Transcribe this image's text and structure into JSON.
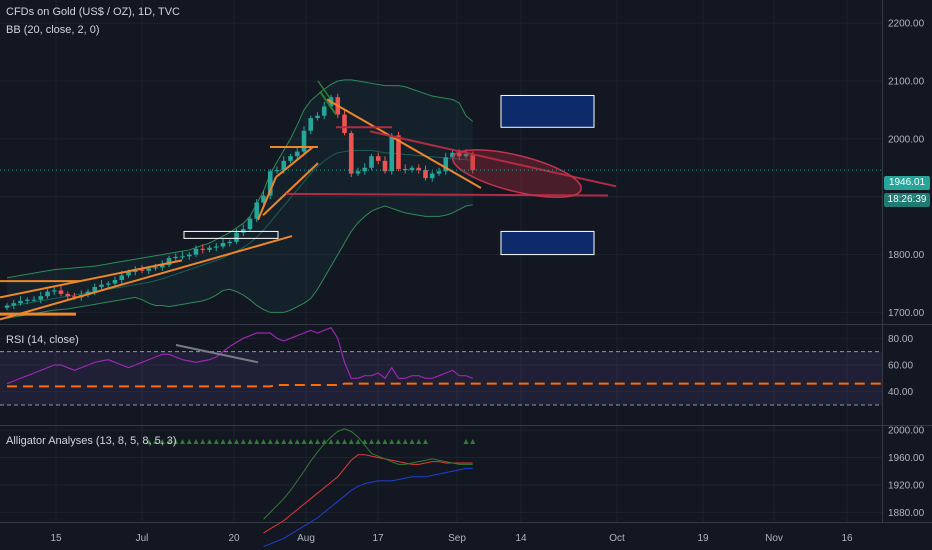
{
  "header": {
    "symbol_line": "CFDs on Gold (US$ / OZ), 1D, TVC",
    "bb_line": "BB (20, close, 2, 0)"
  },
  "rsi_pane": {
    "label": "RSI (14, close)"
  },
  "alligator_pane": {
    "label": "Alligator Analyses (13, 8, 5, 8, 5, 3)"
  },
  "price_tags": {
    "last_price": "1946.01",
    "countdown": "18:26:39"
  },
  "colors": {
    "background": "#131722",
    "up": "#26a69a",
    "down": "#ef5350",
    "bb": "#2e8b57",
    "trendline": "#f0862a",
    "rsi": "#9c27b0",
    "rsi_ma": "#ff6d00",
    "box": "#0d2b6b",
    "alligator_jaw": "#1e40d0",
    "alligator_teeth": "#e53935",
    "alligator_lips": "#2e7d32"
  },
  "chart_data": [
    {
      "type": "candlestick",
      "title": "CFDs on Gold (US$ / OZ), 1D, TVC",
      "ylim": [
        1680,
        2240
      ],
      "y_ticks": [
        1700,
        1800,
        1900,
        2000,
        2100,
        2200
      ],
      "y_tick_labels": [
        "1700.00",
        "1800.00",
        "1900.00",
        "2000.00",
        "2100.00",
        "2200.00"
      ],
      "x_tick_labels": [
        "15",
        "Jul",
        "20",
        "Aug",
        "17",
        "Sep",
        "14",
        "Oct",
        "19",
        "Nov",
        "16"
      ],
      "last_price": 1946.01,
      "close": [
        1712,
        1716,
        1720,
        1722,
        1722,
        1728,
        1736,
        1738,
        1732,
        1728,
        1726,
        1730,
        1736,
        1744,
        1748,
        1750,
        1756,
        1764,
        1770,
        1774,
        1772,
        1776,
        1778,
        1782,
        1794,
        1796,
        1797,
        1800,
        1810,
        1808,
        1812,
        1814,
        1820,
        1822,
        1838,
        1844,
        1862,
        1890,
        1902,
        1944,
        1946,
        1962,
        1970,
        1978,
        2014,
        2036,
        2040,
        2056,
        2072,
        2042,
        2010,
        1940,
        1944,
        1950,
        1970,
        1962,
        1944,
        2006,
        1948,
        1946,
        1950,
        1946,
        1932,
        1940,
        1944,
        1968,
        1976,
        1970,
        1974,
        1946
      ],
      "bollinger": {
        "upper": [
          1760,
          1762,
          1764,
          1766,
          1768,
          1770,
          1772,
          1774,
          1775,
          1776,
          1777,
          1778,
          1779,
          1780,
          1782,
          1784,
          1786,
          1788,
          1790,
          1792,
          1794,
          1796,
          1798,
          1800,
          1802,
          1804,
          1806,
          1808,
          1812,
          1816,
          1820,
          1826,
          1832,
          1838,
          1846,
          1854,
          1866,
          1888,
          1910,
          1940,
          1960,
          1980,
          2000,
          2024,
          2050,
          2066,
          2076,
          2086,
          2094,
          2100,
          2102,
          2102,
          2100,
          2098,
          2096,
          2094,
          2092,
          2092,
          2092,
          2090,
          2086,
          2082,
          2078,
          2074,
          2072,
          2070,
          2068,
          2062,
          2040,
          2030
        ],
        "basis": [
          1710,
          1712,
          1714,
          1716,
          1718,
          1720,
          1722,
          1724,
          1726,
          1728,
          1730,
          1732,
          1734,
          1736,
          1738,
          1740,
          1742,
          1744,
          1746,
          1748,
          1750,
          1752,
          1755,
          1758,
          1762,
          1766,
          1770,
          1774,
          1778,
          1782,
          1786,
          1790,
          1794,
          1800,
          1806,
          1812,
          1820,
          1830,
          1842,
          1856,
          1870,
          1884,
          1898,
          1912,
          1926,
          1940,
          1952,
          1962,
          1970,
          1976,
          1978,
          1980,
          1980,
          1980,
          1980,
          1978,
          1976,
          1975,
          1974,
          1973,
          1972,
          1971,
          1970,
          1969,
          1968,
          1967,
          1966,
          1965,
          1964,
          1963
        ],
        "lower": [
          1690,
          1692,
          1694,
          1696,
          1698,
          1700,
          1702,
          1704,
          1705,
          1706,
          1708,
          1710,
          1712,
          1714,
          1716,
          1718,
          1720,
          1722,
          1724,
          1726,
          1722,
          1716,
          1712,
          1712,
          1710,
          1712,
          1714,
          1716,
          1718,
          1720,
          1724,
          1730,
          1738,
          1740,
          1736,
          1730,
          1722,
          1712,
          1705,
          1700,
          1700,
          1700,
          1704,
          1710,
          1716,
          1724,
          1740,
          1760,
          1780,
          1800,
          1820,
          1840,
          1855,
          1866,
          1875,
          1880,
          1884,
          1880,
          1876,
          1872,
          1870,
          1868,
          1866,
          1866,
          1866,
          1868,
          1872,
          1878,
          1884,
          1886
        ]
      },
      "annotation_boxes": [
        {
          "label": "",
          "price_range": [
            2020,
            2075
          ]
        },
        {
          "label": "",
          "price_range": [
            1800,
            1840
          ]
        }
      ]
    },
    {
      "type": "line",
      "title": "RSI (14, close)",
      "ylim": [
        15,
        90
      ],
      "y_ticks": [
        40,
        60,
        80
      ],
      "y_tick_labels": [
        "40.00",
        "60.00",
        "80.00"
      ],
      "band": [
        30,
        70
      ],
      "rsi": [
        46,
        48,
        50,
        52,
        54,
        56,
        58,
        60,
        60,
        58,
        56,
        58,
        60,
        62,
        63,
        64,
        62,
        60,
        58,
        60,
        62,
        64,
        66,
        68,
        68,
        66,
        64,
        63,
        62,
        63,
        64,
        66,
        70,
        74,
        77,
        80,
        82,
        84,
        84,
        84,
        80,
        78,
        80,
        82,
        84,
        86,
        84,
        86,
        88,
        80,
        62,
        50,
        50,
        52,
        52,
        54,
        50,
        58,
        50,
        50,
        52,
        52,
        50,
        50,
        52,
        54,
        56,
        52,
        52,
        50
      ],
      "rsi_ma": [
        44,
        44,
        44,
        44,
        44,
        44,
        44,
        44,
        44,
        44,
        44,
        44,
        44,
        44,
        44,
        44,
        44,
        44,
        44,
        44,
        44,
        44,
        44,
        44,
        44,
        44,
        44,
        44,
        44,
        44,
        44,
        44,
        44,
        44,
        44,
        44,
        44,
        44,
        44,
        44,
        45,
        45,
        45,
        45,
        45,
        45,
        45,
        45,
        45,
        45,
        46,
        46,
        46,
        46,
        46,
        46,
        46,
        46,
        46,
        46,
        46,
        46,
        46,
        46,
        46,
        46,
        46,
        46,
        46,
        46
      ]
    },
    {
      "type": "line",
      "title": "Alligator Analyses (13, 8, 5, 8, 5, 3)",
      "ylim": [
        1866,
        2006
      ],
      "y_ticks": [
        1880,
        1920,
        1960,
        2000
      ],
      "y_tick_labels": [
        "1880.00",
        "1920.00",
        "1960.00",
        "2000.00"
      ],
      "x_start_index": 38,
      "lips": [
        1870,
        1880,
        1890,
        1900,
        1912,
        1926,
        1940,
        1955,
        1968,
        1980,
        1990,
        1998,
        2002,
        1998,
        1990,
        1978,
        1966,
        1962,
        1958,
        1954,
        1950,
        1950,
        1952,
        1954,
        1956,
        1958,
        1956,
        1954,
        1952,
        1950,
        1950,
        1950
      ],
      "teeth": [
        1850,
        1856,
        1862,
        1868,
        1876,
        1884,
        1892,
        1900,
        1908,
        1916,
        1924,
        1932,
        1944,
        1956,
        1964,
        1964,
        1962,
        1960,
        1958,
        1956,
        1954,
        1952,
        1950,
        1950,
        1952,
        1954,
        1954,
        1952,
        1952,
        1952,
        1952,
        1952
      ],
      "jaw": [
        1830,
        1834,
        1838,
        1842,
        1848,
        1854,
        1860,
        1866,
        1872,
        1880,
        1888,
        1896,
        1904,
        1912,
        1918,
        1922,
        1924,
        1926,
        1926,
        1926,
        1928,
        1930,
        1932,
        1932,
        1932,
        1934,
        1936,
        1938,
        1940,
        1942,
        1944,
        1944
      ]
    }
  ]
}
